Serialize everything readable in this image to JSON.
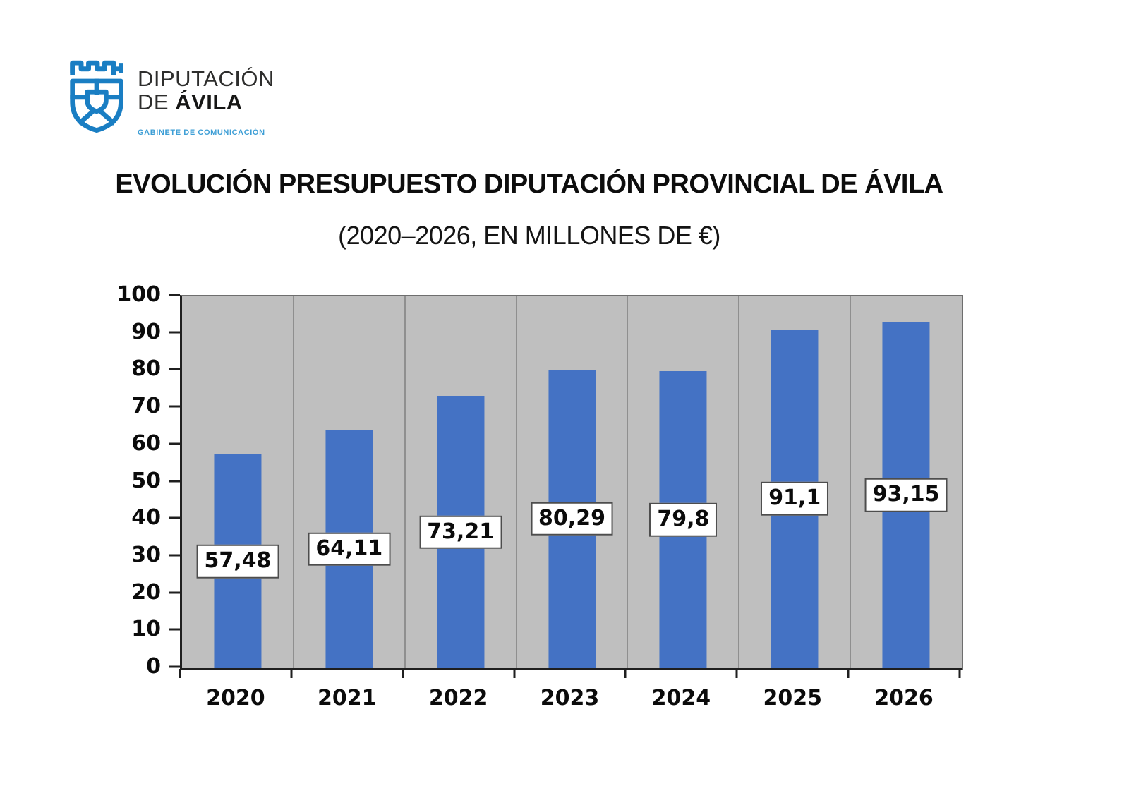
{
  "logo": {
    "org_line1": "DIPUTACIÓN",
    "org_line2_prefix": "DE ",
    "org_line2_bold": "ÁVILA",
    "tagline": "GABINETE DE COMUNICACIÓN"
  },
  "title": "EVOLUCIÓN PRESUPUESTO DIPUTACIÓN PROVINCIAL DE ÁVILA",
  "subtitle": "(2020–2026, EN MILLONES DE €)",
  "chart_data": {
    "type": "bar",
    "title": "EVOLUCIÓN PRESUPUESTO DIPUTACIÓN PROVINCIAL DE ÁVILA",
    "subtitle": "(2020–2026, EN MILLONES DE €)",
    "categories": [
      "2020",
      "2021",
      "2022",
      "2023",
      "2024",
      "2025",
      "2026"
    ],
    "values": [
      57.48,
      64.11,
      73.21,
      80.29,
      79.8,
      91.1,
      93.15
    ],
    "value_labels": [
      "57,48",
      "64,11",
      "73,21",
      "80,29",
      "79,8",
      "91,1",
      "93,15"
    ],
    "ylim": [
      0,
      100
    ],
    "ytick_step": 10,
    "legend": "none",
    "grid": "vertical-category-separators",
    "value_label_position": "middle-of-bar",
    "bar_color": "#4472c4",
    "plot_bg_color": "#bfbfbf",
    "gridline_color": "#8f8f8f"
  },
  "colors": {
    "logo_blue": "#1a7ec3",
    "tagline_blue": "#3f9fd6",
    "axis": "#1f1f1f",
    "value_box_border": "#4d4d4d"
  }
}
